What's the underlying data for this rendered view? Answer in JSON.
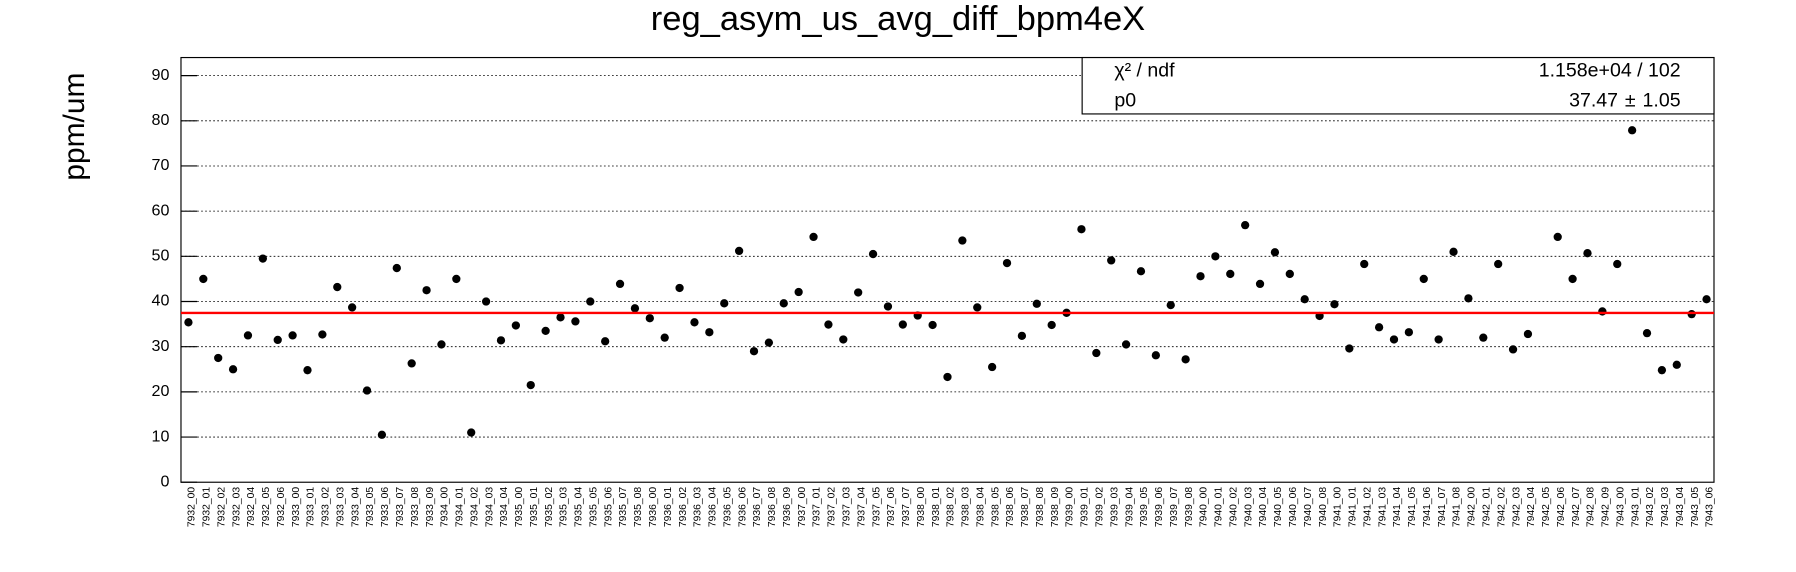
{
  "chart_data": {
    "type": "scatter",
    "title": "reg_asym_us_avg_diff_bpm4eX",
    "y_label": "ppm/um",
    "categories": [
      "7932_00",
      "7932_01",
      "7932_02",
      "7932_03",
      "7932_04",
      "7932_05",
      "7932_06",
      "7933_00",
      "7933_01",
      "7933_02",
      "7933_03",
      "7933_04",
      "7933_05",
      "7933_06",
      "7933_07",
      "7933_08",
      "7933_09",
      "7934_00",
      "7934_01",
      "7934_02",
      "7934_03",
      "7934_04",
      "7935_00",
      "7935_01",
      "7935_02",
      "7935_03",
      "7935_04",
      "7935_05",
      "7935_06",
      "7935_07",
      "7935_08",
      "7936_00",
      "7936_01",
      "7936_02",
      "7936_03",
      "7936_04",
      "7936_05",
      "7936_06",
      "7936_07",
      "7936_08",
      "7936_09",
      "7937_00",
      "7937_01",
      "7937_02",
      "7937_03",
      "7937_04",
      "7937_05",
      "7937_06",
      "7937_07",
      "7938_00",
      "7938_01",
      "7938_02",
      "7938_03",
      "7938_04",
      "7938_05",
      "7938_06",
      "7938_07",
      "7938_08",
      "7938_09",
      "7939_00",
      "7939_01",
      "7939_02",
      "7939_03",
      "7939_04",
      "7939_05",
      "7939_06",
      "7939_07",
      "7939_08",
      "7940_00",
      "7940_01",
      "7940_02",
      "7940_03",
      "7940_04",
      "7940_05",
      "7940_06",
      "7940_07",
      "7940_08",
      "7941_00",
      "7941_01",
      "7941_02",
      "7941_03",
      "7941_04",
      "7941_05",
      "7941_06",
      "7941_07",
      "7941_08",
      "7942_00",
      "7942_01",
      "7942_02",
      "7942_03",
      "7942_04",
      "7942_05",
      "7942_06",
      "7942_07",
      "7942_08",
      "7942_09",
      "7943_00",
      "7943_01",
      "7943_02",
      "7943_03",
      "7943_04",
      "7943_05",
      "7943_06"
    ],
    "values": [
      35.4,
      45,
      27.5,
      25,
      32.5,
      49.5,
      31.5,
      32.5,
      24.8,
      32.7,
      43.2,
      38.7,
      20.3,
      10.5,
      47.4,
      26.3,
      42.5,
      30.5,
      45,
      11,
      40,
      31.4,
      34.7,
      21.5,
      33.5,
      36.5,
      35.6,
      40,
      31.2,
      43.9,
      38.5,
      36.3,
      32,
      43,
      35.4,
      33.2,
      39.6,
      51.2,
      29,
      30.9,
      39.6,
      42.1,
      54.3,
      34.9,
      31.6,
      42,
      50.5,
      38.9,
      34.9,
      36.9,
      34.8,
      23.3,
      53.5,
      38.7,
      25.5,
      48.5,
      32.4,
      39.5,
      34.8,
      37.5,
      56,
      28.6,
      49.1,
      30.5,
      46.7,
      28.1,
      39.2,
      27.2,
      45.6,
      50,
      46.1,
      56.9,
      43.9,
      50.9,
      46.1,
      40.5,
      36.8,
      39.4,
      29.6,
      48.3,
      34.3,
      31.6,
      33.2,
      45,
      31.6,
      51,
      40.7,
      32,
      48.3,
      29.4,
      32.8,
      null,
      54.3,
      45,
      50.7,
      37.8,
      48.3,
      77.9,
      33,
      24.8,
      26,
      37.2,
      40.5
    ],
    "color": "#000000",
    "fit": {
      "p0": 37.47,
      "error": 1.05,
      "color": "#ff0000"
    },
    "stats": {
      "chi2_label": "χ² / ndf",
      "chi2_value": "1.158e+04 / 102",
      "p0_label": "p0",
      "pm": "±"
    },
    "ylim": [
      0,
      94
    ],
    "yticks": [
      0,
      10,
      20,
      30,
      40,
      50,
      60,
      70,
      80,
      90
    ],
    "grid": true
  }
}
